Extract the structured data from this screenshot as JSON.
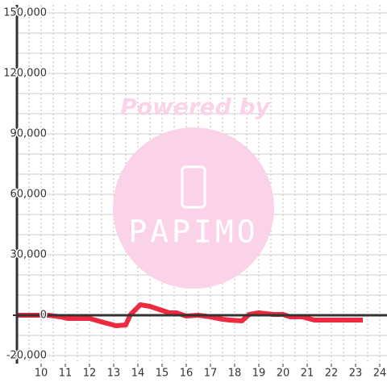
{
  "chart_data": {
    "type": "line",
    "watermark": {
      "line1": "Powered by",
      "line2": "PAPIMO"
    },
    "x": [
      9.0,
      10.3,
      10.8,
      11.1,
      12.0,
      12.6,
      13.1,
      13.5,
      13.7,
      14.1,
      14.5,
      15.0,
      15.3,
      15.6,
      16.0,
      16.5,
      17.0,
      17.5,
      17.8,
      18.3,
      18.6,
      19.0,
      19.6,
      20.0,
      20.3,
      20.8,
      21.3,
      23.3
    ],
    "series": [
      {
        "color": "#ee2a40",
        "values": [
          0,
          0,
          -800,
          -1600,
          -1600,
          -3600,
          -5200,
          -4800,
          400,
          5200,
          4400,
          2400,
          1200,
          1200,
          -400,
          0,
          -800,
          -2000,
          -2400,
          -2800,
          400,
          1200,
          400,
          400,
          -800,
          -800,
          -2400,
          -2400
        ]
      }
    ],
    "xlim": [
      9,
      24.3
    ],
    "ylim": [
      -24000,
      154000
    ],
    "xticks": [
      10,
      11,
      12,
      13,
      14,
      15,
      16,
      17,
      18,
      19,
      20,
      21,
      22,
      23,
      24
    ],
    "yticks": [
      {
        "value": -20000,
        "label": "-20,000"
      },
      0,
      {
        "value": 30000,
        "label": "30,000"
      },
      {
        "value": 60000,
        "label": "60,000"
      },
      {
        "value": 90000,
        "label": "90,000"
      },
      {
        "value": 120000,
        "label": "120,000"
      },
      {
        "value": 150000,
        "label": "150,000"
      }
    ],
    "xgrid": [
      9.5,
      10,
      10.5,
      11,
      11.5,
      12,
      12.5,
      13,
      13.5,
      14,
      14.5,
      15,
      15.5,
      16,
      16.5,
      17,
      17.5,
      18,
      18.5,
      19,
      19.5,
      20,
      20.5,
      21,
      21.5,
      22,
      22.5,
      23,
      23.5,
      24
    ],
    "ygrid": [
      -20000,
      -10000,
      10000,
      20000,
      30000,
      40000,
      50000,
      60000,
      70000,
      80000,
      90000,
      100000,
      110000,
      120000,
      130000,
      140000,
      150000
    ],
    "grid": true
  }
}
